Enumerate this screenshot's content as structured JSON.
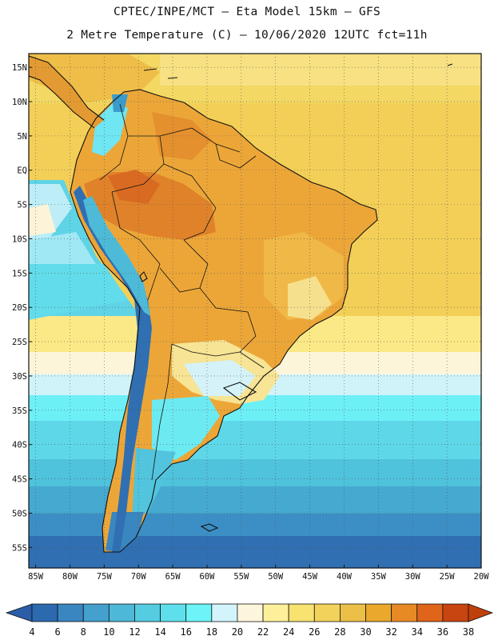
{
  "header": {
    "line1": "CPTEC/INPE/MCT –  Eta Model 15km – GFS",
    "line2": "2 Metre Temperature (C) – 10/06/2020 12UTC fct=11h"
  },
  "map": {
    "lat_range": [
      -58,
      17
    ],
    "lon_range": [
      -86,
      -20
    ],
    "lat_labels": [
      "15N",
      "10N",
      "5N",
      "EQ",
      "5S",
      "10S",
      "15S",
      "20S",
      "25S",
      "30S",
      "35S",
      "40S",
      "45S",
      "50S",
      "55S"
    ],
    "lat_values": [
      15,
      10,
      5,
      0,
      -5,
      -10,
      -15,
      -20,
      -25,
      -30,
      -35,
      -40,
      -45,
      -50,
      -55
    ],
    "lon_labels": [
      "85W",
      "80W",
      "75W",
      "70W",
      "65W",
      "60W",
      "55W",
      "50W",
      "45W",
      "40W",
      "35W",
      "30W",
      "25W",
      "20W"
    ],
    "lon_values": [
      -85,
      -80,
      -75,
      -70,
      -65,
      -60,
      -55,
      -50,
      -45,
      -40,
      -35,
      -30,
      -25,
      -20
    ]
  },
  "colorbar": {
    "labels": [
      "4",
      "6",
      "8",
      "10",
      "12",
      "14",
      "16",
      "18",
      "20",
      "22",
      "24",
      "26",
      "28",
      "30",
      "32",
      "34",
      "36",
      "38"
    ],
    "colors": [
      "#2c6ab0",
      "#3a86c0",
      "#44a0cc",
      "#4db8d8",
      "#55cce2",
      "#5ee0ec",
      "#6cf4f8",
      "#d2f4fa",
      "#fdf6dc",
      "#fdf09a",
      "#f8e270",
      "#f2d25a",
      "#ecc048",
      "#eaa82c",
      "#e88a24",
      "#e0641a",
      "#c84410"
    ],
    "under_color": "#2a5ca8",
    "over_color": "#c0400c"
  },
  "colors": {
    "ocean_warm": "#f3cf57",
    "ocean_cool": "#5fd8e6",
    "land_warm": "#eaa43a",
    "border": "#111111"
  }
}
